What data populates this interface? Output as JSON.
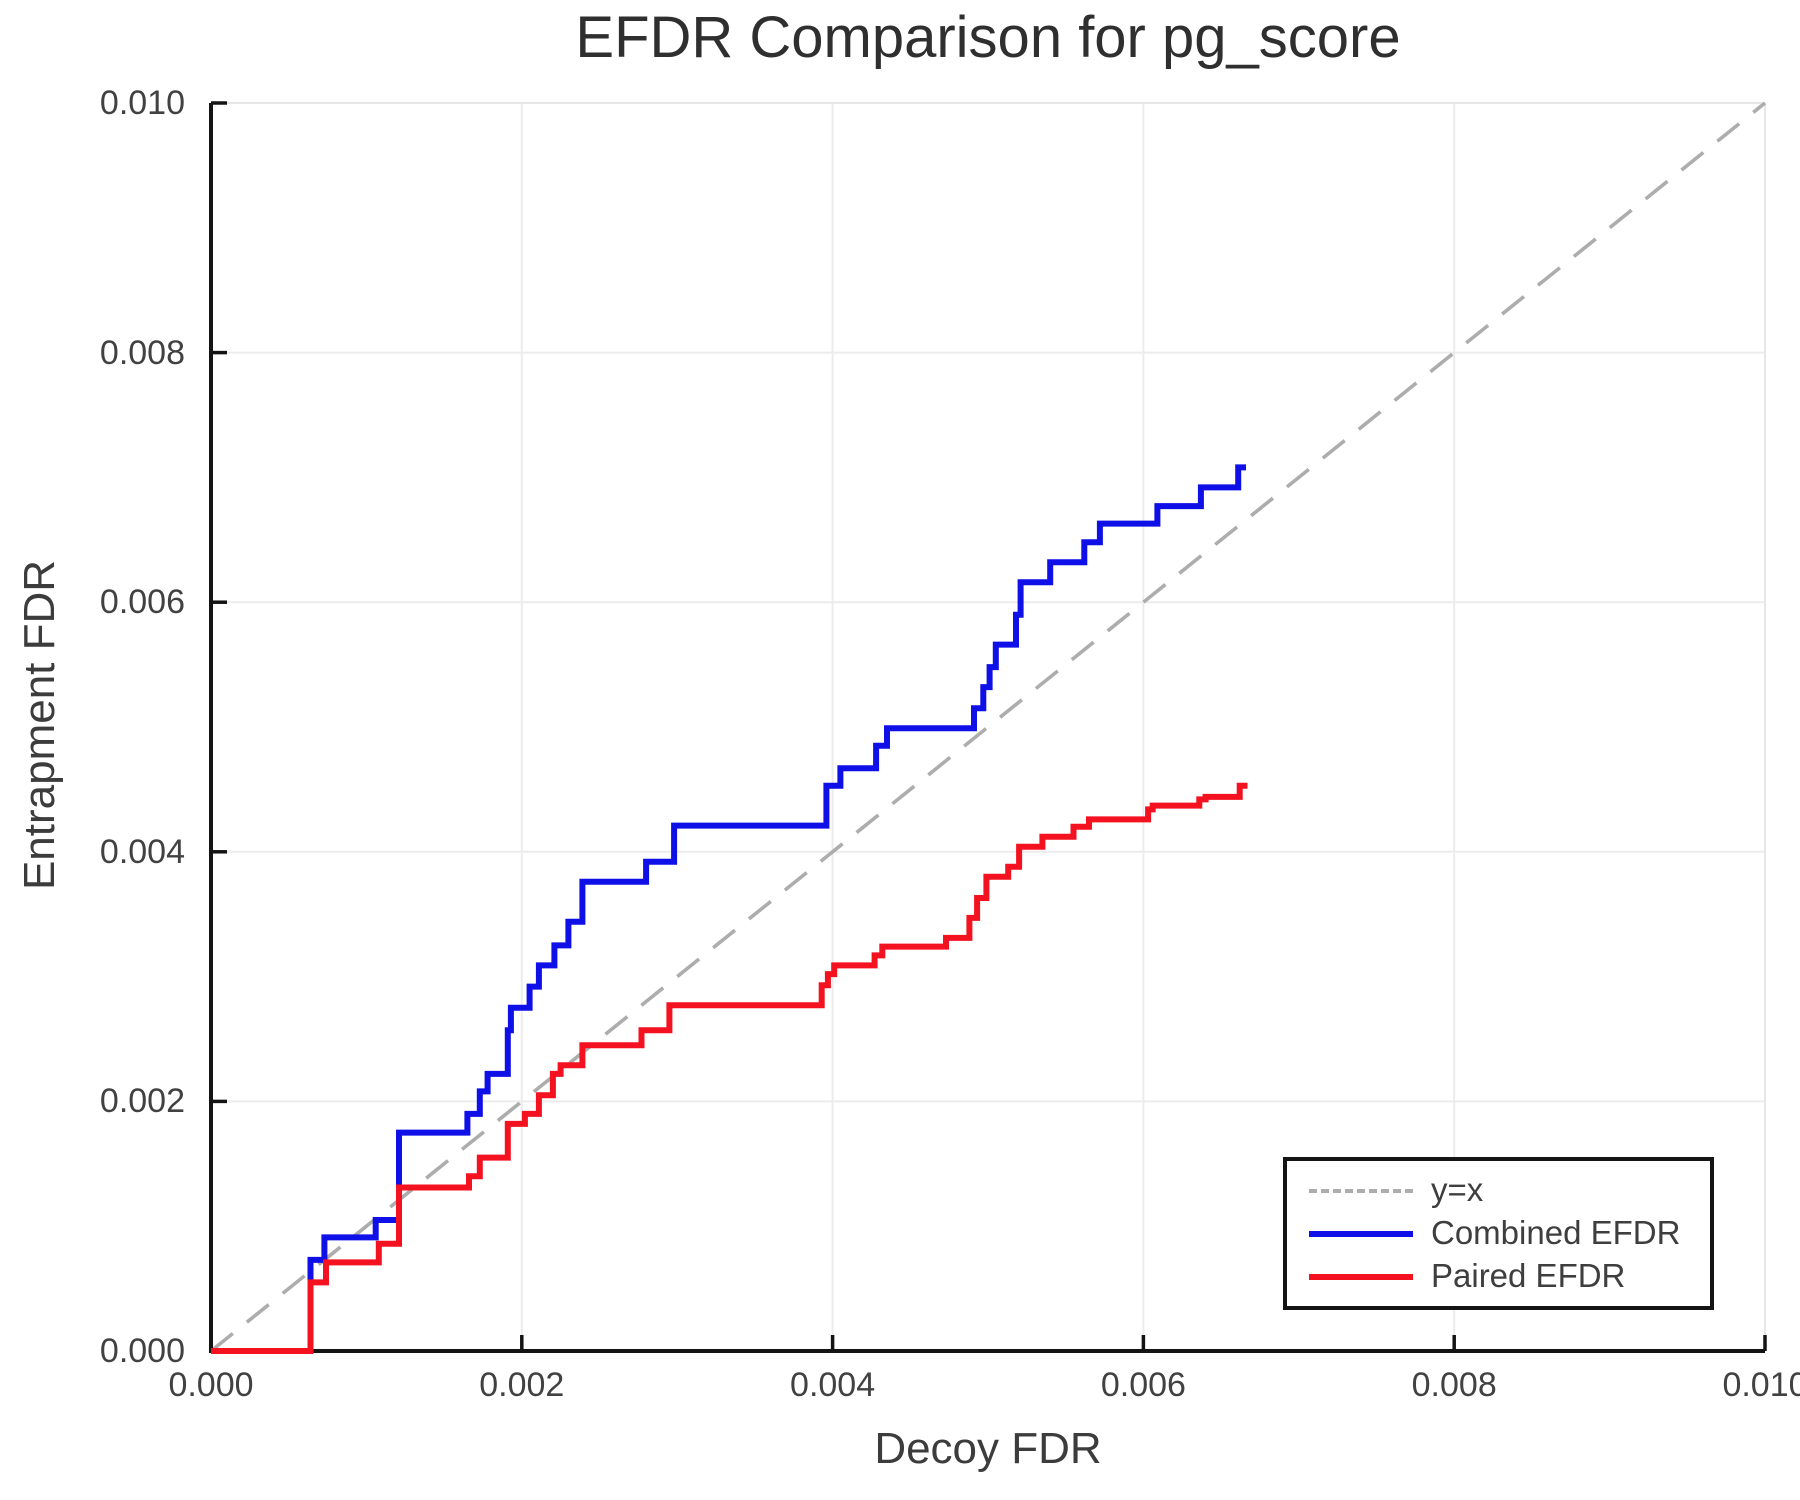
{
  "chart_data": {
    "type": "line",
    "subtype": "step-post",
    "title": "EFDR Comparison for pg_score",
    "xlabel": "Decoy FDR",
    "ylabel": "Entrapment FDR",
    "xlim": [
      0,
      0.01
    ],
    "ylim": [
      0,
      0.01
    ],
    "xticks": [
      0,
      0.002,
      0.004,
      0.006,
      0.008,
      0.01
    ],
    "yticks": [
      0,
      0.002,
      0.004,
      0.006,
      0.008,
      0.01
    ],
    "xtick_labels": [
      "0.000",
      "0.002",
      "0.004",
      "0.006",
      "0.008",
      "0.010"
    ],
    "ytick_labels": [
      "0.000",
      "0.002",
      "0.004",
      "0.006",
      "0.008",
      "0.010"
    ],
    "grid": true,
    "legend_position": "lower right",
    "colors": {
      "grid": "#ececec",
      "frame_light": "#e7e7e7",
      "spine": "#141414",
      "tick_text": "#414141",
      "title_text": "#2f2f2f",
      "background": "#ffffff"
    },
    "reference_line": {
      "label": "y=x",
      "color": "#adadad",
      "style": "dashed",
      "from": [
        0,
        0
      ],
      "to": [
        0.01,
        0.01
      ]
    },
    "legend": {
      "entries": [
        "y=x",
        "Combined EFDR",
        "Paired EFDR"
      ]
    },
    "series": [
      {
        "name": "Combined EFDR",
        "color": "#0f0fe8",
        "step": "post",
        "start": [
          0,
          0
        ],
        "end_x": 0.00666,
        "points": [
          [
            0.00064,
            0.00073
          ],
          [
            0.00073,
            0.00091
          ],
          [
            0.00106,
            0.00105
          ],
          [
            0.00121,
            0.00175
          ],
          [
            0.00165,
            0.0019
          ],
          [
            0.00173,
            0.00208
          ],
          [
            0.00178,
            0.00222
          ],
          [
            0.00191,
            0.00257
          ],
          [
            0.00193,
            0.00275
          ],
          [
            0.00205,
            0.00292
          ],
          [
            0.00211,
            0.00309
          ],
          [
            0.00221,
            0.00325
          ],
          [
            0.0023,
            0.00344
          ],
          [
            0.00239,
            0.00376
          ],
          [
            0.0028,
            0.00392
          ],
          [
            0.00298,
            0.00421
          ],
          [
            0.00396,
            0.00453
          ],
          [
            0.00405,
            0.00467
          ],
          [
            0.00428,
            0.00485
          ],
          [
            0.00435,
            0.00499
          ],
          [
            0.00491,
            0.00515
          ],
          [
            0.00497,
            0.00532
          ],
          [
            0.00501,
            0.00548
          ],
          [
            0.00505,
            0.00566
          ],
          [
            0.00518,
            0.0059
          ],
          [
            0.00521,
            0.00616
          ],
          [
            0.0054,
            0.00632
          ],
          [
            0.00562,
            0.00648
          ],
          [
            0.00572,
            0.00663
          ],
          [
            0.00609,
            0.00677
          ],
          [
            0.00637,
            0.00692
          ],
          [
            0.00661,
            0.00708
          ]
        ]
      },
      {
        "name": "Paired EFDR",
        "color": "#f51220",
        "step": "post",
        "start": [
          0,
          0
        ],
        "end_x": 0.00667,
        "points": [
          [
            0.00064,
            0.00055
          ],
          [
            0.00074,
            0.00071
          ],
          [
            0.00108,
            0.00086
          ],
          [
            0.00121,
            0.00131
          ],
          [
            0.00166,
            0.0014
          ],
          [
            0.00173,
            0.00155
          ],
          [
            0.00191,
            0.00182
          ],
          [
            0.00202,
            0.0019
          ],
          [
            0.00211,
            0.00205
          ],
          [
            0.0022,
            0.00222
          ],
          [
            0.00225,
            0.00229
          ],
          [
            0.00239,
            0.00245
          ],
          [
            0.00277,
            0.00257
          ],
          [
            0.00295,
            0.00277
          ],
          [
            0.00393,
            0.00293
          ],
          [
            0.00397,
            0.00302
          ],
          [
            0.00401,
            0.00309
          ],
          [
            0.00427,
            0.00317
          ],
          [
            0.00432,
            0.00324
          ],
          [
            0.00473,
            0.00331
          ],
          [
            0.00488,
            0.00347
          ],
          [
            0.00493,
            0.00363
          ],
          [
            0.00499,
            0.0038
          ],
          [
            0.00513,
            0.00388
          ],
          [
            0.0052,
            0.00404
          ],
          [
            0.00535,
            0.00412
          ],
          [
            0.00555,
            0.0042
          ],
          [
            0.00565,
            0.00426
          ],
          [
            0.00603,
            0.00434
          ],
          [
            0.00606,
            0.00437
          ],
          [
            0.00636,
            0.00442
          ],
          [
            0.0064,
            0.00444
          ],
          [
            0.00662,
            0.00453
          ]
        ]
      }
    ]
  }
}
